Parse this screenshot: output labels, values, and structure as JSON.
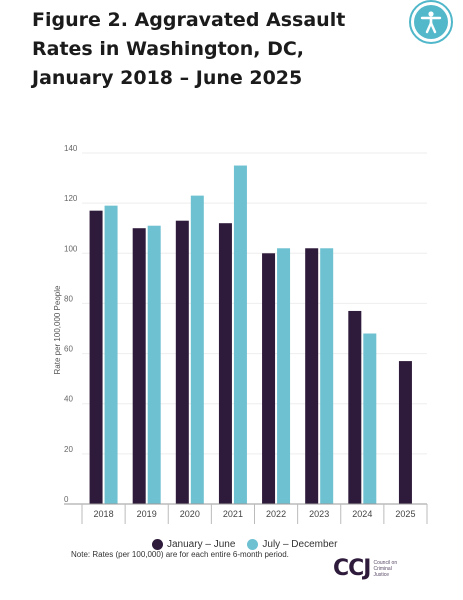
{
  "header": {
    "title": "Figure 2. Aggravated Assault Rates in Washington, DC, January 2018 – June 2025"
  },
  "accessibility": {
    "icon": "accessibility-icon"
  },
  "colors": {
    "series1": "#2e1a3a",
    "series2": "#6ec1d1",
    "grid": "#eeeeee",
    "tick": "#666666"
  },
  "chart_data": {
    "type": "bar",
    "title": "Figure 2. Aggravated Assault Rates in Washington, DC, January 2018 – June 2025",
    "xlabel": "",
    "ylabel": "Rate per 100,000 People",
    "ylim": [
      0,
      140
    ],
    "yticks": [
      0,
      20,
      40,
      60,
      80,
      100,
      120,
      140
    ],
    "grid": true,
    "legend": "bottom",
    "categories": [
      "2018",
      "2019",
      "2020",
      "2021",
      "2022",
      "2023",
      "2024",
      "2025"
    ],
    "series": [
      {
        "name": "January – June",
        "values": [
          117,
          110,
          113,
          112,
          100,
          102,
          77,
          57
        ]
      },
      {
        "name": "July – December",
        "values": [
          119,
          111,
          123,
          135,
          102,
          102,
          68,
          null
        ]
      }
    ]
  },
  "note": "Note: Rates (per 100,000) are for each entire 6-month period.",
  "logo": {
    "mark": "CCJ",
    "text": "Council on Criminal Justice"
  }
}
